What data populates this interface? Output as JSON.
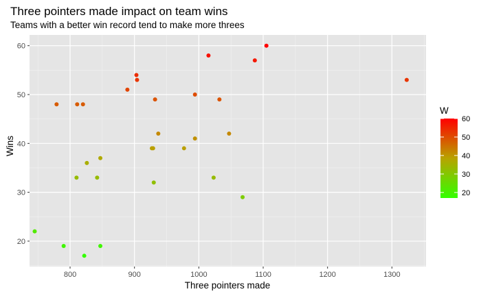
{
  "chart_data": {
    "type": "scatter",
    "title": "Three pointers made impact on team wins",
    "subtitle": "Teams with a better win record tend to make more threes",
    "xlabel": "Three pointers made",
    "ylabel": "Wins",
    "xlim": [
      737,
      1353
    ],
    "ylim": [
      14.8,
      62.2
    ],
    "x_ticks": [
      800,
      900,
      1000,
      1100,
      1200,
      1300
    ],
    "y_ticks": [
      20,
      30,
      40,
      50,
      60
    ],
    "grid": true,
    "legend": {
      "title": "W",
      "placement": "right",
      "ticks": [
        20,
        30,
        40,
        50,
        60
      ],
      "range": [
        17,
        60
      ],
      "color_low": "#33ff00",
      "color_mid": "#b8a300",
      "color_high": "#ff0000"
    },
    "points": [
      {
        "x": 745,
        "y": 22
      },
      {
        "x": 779,
        "y": 48
      },
      {
        "x": 790,
        "y": 19
      },
      {
        "x": 810,
        "y": 33
      },
      {
        "x": 811,
        "y": 48
      },
      {
        "x": 820,
        "y": 48
      },
      {
        "x": 822,
        "y": 17
      },
      {
        "x": 826,
        "y": 36
      },
      {
        "x": 842,
        "y": 33
      },
      {
        "x": 847,
        "y": 37
      },
      {
        "x": 847,
        "y": 19
      },
      {
        "x": 889,
        "y": 51
      },
      {
        "x": 903,
        "y": 54
      },
      {
        "x": 904,
        "y": 53
      },
      {
        "x": 927,
        "y": 39
      },
      {
        "x": 929,
        "y": 39
      },
      {
        "x": 930,
        "y": 32
      },
      {
        "x": 932,
        "y": 49
      },
      {
        "x": 937,
        "y": 42
      },
      {
        "x": 977,
        "y": 39
      },
      {
        "x": 994,
        "y": 41
      },
      {
        "x": 994,
        "y": 50
      },
      {
        "x": 1015,
        "y": 58
      },
      {
        "x": 1023,
        "y": 33
      },
      {
        "x": 1032,
        "y": 49
      },
      {
        "x": 1047,
        "y": 42
      },
      {
        "x": 1068,
        "y": 29
      },
      {
        "x": 1087,
        "y": 57
      },
      {
        "x": 1105,
        "y": 60
      },
      {
        "x": 1323,
        "y": 53
      }
    ]
  }
}
